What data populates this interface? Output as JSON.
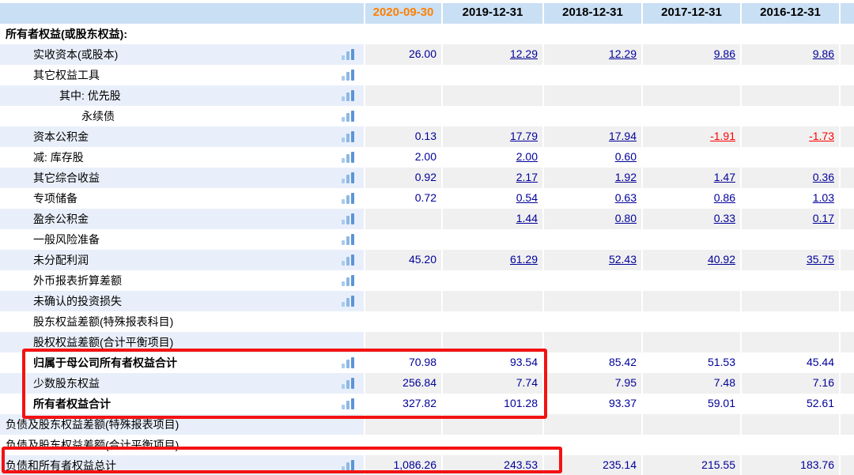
{
  "table": {
    "period_columns": [
      "2020-09-30",
      "2019-12-31",
      "2018-12-31",
      "2017-12-31",
      "2016-12-31"
    ],
    "current_period": "2020-09-30",
    "rows": [
      {
        "label": "所有者权益(或股东权益):",
        "indent": 0,
        "bold": true,
        "icon": false,
        "striped": false,
        "values": [
          null,
          null,
          null,
          null,
          null
        ]
      },
      {
        "label": "实收资本(或股本)",
        "indent": 1,
        "bold": false,
        "icon": true,
        "striped": true,
        "values": [
          {
            "v": "26.00"
          },
          {
            "v": "12.29",
            "link": true
          },
          {
            "v": "12.29",
            "link": true
          },
          {
            "v": "9.86",
            "link": true
          },
          {
            "v": "9.86",
            "link": true
          }
        ]
      },
      {
        "label": "其它权益工具",
        "indent": 1,
        "bold": false,
        "icon": true,
        "striped": false,
        "values": [
          null,
          null,
          null,
          null,
          null
        ]
      },
      {
        "label": "其中: 优先股",
        "indent": 2,
        "bold": false,
        "icon": true,
        "striped": true,
        "values": [
          null,
          null,
          null,
          null,
          null
        ]
      },
      {
        "label": "永续债",
        "indent": 3,
        "bold": false,
        "icon": true,
        "striped": false,
        "values": [
          null,
          null,
          null,
          null,
          null
        ]
      },
      {
        "label": "资本公积金",
        "indent": 1,
        "bold": false,
        "icon": true,
        "striped": true,
        "values": [
          {
            "v": "0.13"
          },
          {
            "v": "17.79",
            "link": true
          },
          {
            "v": "17.94",
            "link": true
          },
          {
            "v": "-1.91",
            "link": true,
            "neg": true
          },
          {
            "v": "-1.73",
            "link": true,
            "neg": true
          }
        ]
      },
      {
        "label": "减: 库存股",
        "indent": 1,
        "bold": false,
        "icon": true,
        "striped": false,
        "values": [
          {
            "v": "2.00"
          },
          {
            "v": "2.00",
            "link": true
          },
          {
            "v": "0.60",
            "link": true
          },
          null,
          null
        ]
      },
      {
        "label": "其它综合收益",
        "indent": 1,
        "bold": false,
        "icon": true,
        "striped": true,
        "values": [
          {
            "v": "0.92"
          },
          {
            "v": "2.17",
            "link": true
          },
          {
            "v": "1.92",
            "link": true
          },
          {
            "v": "1.47",
            "link": true
          },
          {
            "v": "0.36",
            "link": true
          }
        ]
      },
      {
        "label": "专项储备",
        "indent": 1,
        "bold": false,
        "icon": true,
        "striped": false,
        "values": [
          {
            "v": "0.72"
          },
          {
            "v": "0.54",
            "link": true
          },
          {
            "v": "0.63",
            "link": true
          },
          {
            "v": "0.86",
            "link": true
          },
          {
            "v": "1.03",
            "link": true
          }
        ]
      },
      {
        "label": "盈余公积金",
        "indent": 1,
        "bold": false,
        "icon": true,
        "striped": true,
        "values": [
          null,
          {
            "v": "1.44",
            "link": true
          },
          {
            "v": "0.80",
            "link": true
          },
          {
            "v": "0.33",
            "link": true
          },
          {
            "v": "0.17",
            "link": true
          }
        ]
      },
      {
        "label": "一般风险准备",
        "indent": 1,
        "bold": false,
        "icon": true,
        "striped": false,
        "values": [
          null,
          null,
          null,
          null,
          null
        ]
      },
      {
        "label": "未分配利润",
        "indent": 1,
        "bold": false,
        "icon": true,
        "striped": true,
        "values": [
          {
            "v": "45.20"
          },
          {
            "v": "61.29",
            "link": true
          },
          {
            "v": "52.43",
            "link": true
          },
          {
            "v": "40.92",
            "link": true
          },
          {
            "v": "35.75",
            "link": true
          }
        ]
      },
      {
        "label": "外币报表折算差额",
        "indent": 1,
        "bold": false,
        "icon": true,
        "striped": false,
        "values": [
          null,
          null,
          null,
          null,
          null
        ]
      },
      {
        "label": "未确认的投资损失",
        "indent": 1,
        "bold": false,
        "icon": true,
        "striped": true,
        "values": [
          null,
          null,
          null,
          null,
          null
        ]
      },
      {
        "label": "股东权益差额(特殊报表科目)",
        "indent": 1,
        "bold": false,
        "icon": false,
        "striped": false,
        "values": [
          null,
          null,
          null,
          null,
          null
        ]
      },
      {
        "label": "股权权益差额(合计平衡项目)",
        "indent": 1,
        "bold": false,
        "icon": false,
        "striped": true,
        "values": [
          null,
          null,
          null,
          null,
          null
        ]
      },
      {
        "label": "归属于母公司所有者权益合计",
        "indent": 1,
        "bold": true,
        "icon": true,
        "striped": false,
        "values": [
          {
            "v": "70.98"
          },
          {
            "v": "93.54"
          },
          {
            "v": "85.42"
          },
          {
            "v": "51.53"
          },
          {
            "v": "45.44"
          }
        ]
      },
      {
        "label": "少数股东权益",
        "indent": 1,
        "bold": false,
        "icon": true,
        "striped": true,
        "values": [
          {
            "v": "256.84"
          },
          {
            "v": "7.74"
          },
          {
            "v": "7.95"
          },
          {
            "v": "7.48"
          },
          {
            "v": "7.16"
          }
        ]
      },
      {
        "label": "所有者权益合计",
        "indent": 1,
        "bold": true,
        "icon": true,
        "striped": false,
        "values": [
          {
            "v": "327.82"
          },
          {
            "v": "101.28"
          },
          {
            "v": "93.37"
          },
          {
            "v": "59.01"
          },
          {
            "v": "52.61"
          }
        ]
      },
      {
        "label": "负债及股东权益差额(特殊报表项目)",
        "indent": 0,
        "bold": false,
        "icon": false,
        "striped": true,
        "values": [
          null,
          null,
          null,
          null,
          null
        ]
      },
      {
        "label": "负债及股东权益差额(合计平衡项目)",
        "indent": 0,
        "bold": false,
        "icon": false,
        "striped": false,
        "values": [
          null,
          null,
          null,
          null,
          null
        ]
      },
      {
        "label": "负债和所有者权益总计",
        "indent": 0,
        "bold": false,
        "icon": true,
        "striped": true,
        "values": [
          {
            "v": "1,086.26"
          },
          {
            "v": "243.53"
          },
          {
            "v": "235.14"
          },
          {
            "v": "215.55"
          },
          {
            "v": "183.76"
          }
        ]
      }
    ]
  },
  "annotations": {
    "highlight_color": "#f31212",
    "boxes": [
      {
        "name": "equity-totals-highlight",
        "covers": [
          "归属于母公司所有者权益合计",
          "少数股东权益",
          "所有者权益合计"
        ],
        "columns": [
          "2020-09-30",
          "2019-12-31"
        ]
      },
      {
        "name": "total-liabilities-equity-highlight",
        "covers": [
          "负债和所有者权益总计"
        ],
        "columns": [
          "2020-09-30",
          "2019-12-31"
        ]
      }
    ]
  },
  "colors": {
    "header_bg": "#c9dff4",
    "current_period_text": "#ff8000",
    "label_stripe": "#e9effa",
    "value_stripe": "#f0f0f0",
    "value_text": "#000099",
    "negative_text": "#ff0000"
  },
  "icons": {
    "row_chart_icon": "bar-chart-icon"
  }
}
